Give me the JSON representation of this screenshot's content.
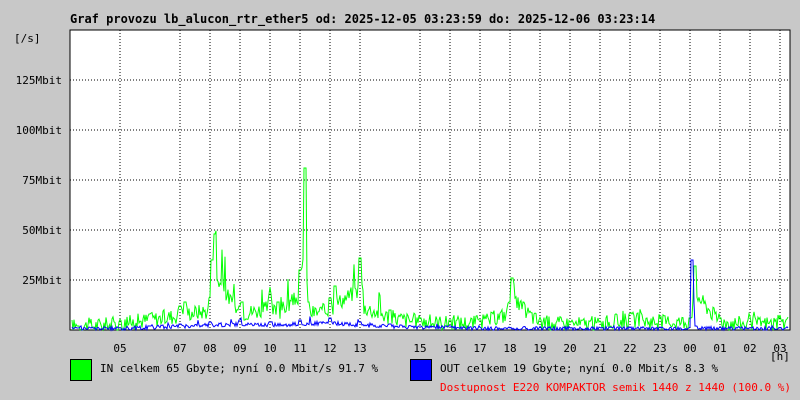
{
  "title": "Graf provozu lb_alucon_rtr_ether5 od: 2025-12-05 03:23:59 do: 2025-12-06 03:23:14",
  "chart_data": {
    "type": "area",
    "title": "Graf provozu lb_alucon_rtr_ether5 od: 2025-12-05 03:23:59 do: 2025-12-06 03:23:14",
    "ylabel": "[/s]",
    "xlabel": "[h]",
    "ylim": [
      0,
      150
    ],
    "y_unit": "Mbit",
    "y_ticks": [
      {
        "value": 25,
        "label": "25Mbit"
      },
      {
        "value": 50,
        "label": "50Mbit"
      },
      {
        "value": 75,
        "label": "75Mbit"
      },
      {
        "value": 100,
        "label": "100Mbit"
      },
      {
        "value": 125,
        "label": "125Mbit"
      }
    ],
    "x_ticks": [
      "05",
      "07",
      "08",
      "09",
      "10",
      "11",
      "12",
      "13",
      "15",
      "16",
      "17",
      "18",
      "19",
      "20",
      "21",
      "22",
      "23",
      "00",
      "01",
      "02",
      "03"
    ],
    "grid": true,
    "series": [
      {
        "name": "IN",
        "color": "#00ff00",
        "x": [
          "04",
          "05",
          "06",
          "07",
          "07",
          "08",
          "08",
          "08",
          "09",
          "09",
          "10",
          "10",
          "11",
          "11",
          "11",
          "12",
          "12",
          "13",
          "13",
          "14",
          "15",
          "16",
          "17",
          "18",
          "18",
          "19",
          "20",
          "21",
          "22",
          "23",
          "00",
          "00",
          "01",
          "02",
          "03"
        ],
        "values": [
          2,
          4,
          8,
          12,
          14,
          16,
          35,
          48,
          12,
          14,
          18,
          14,
          30,
          81,
          14,
          16,
          22,
          36,
          20,
          10,
          6,
          5,
          5,
          14,
          26,
          5,
          4,
          4,
          8,
          6,
          6,
          32,
          6,
          4,
          5
        ]
      },
      {
        "name": "OUT",
        "color": "#0000ff",
        "x": [
          "04",
          "05",
          "06",
          "07",
          "08",
          "09",
          "10",
          "11",
          "12",
          "13",
          "14",
          "15",
          "16",
          "17",
          "18",
          "19",
          "20",
          "21",
          "22",
          "23",
          "00",
          "00",
          "00",
          "01",
          "02",
          "03"
        ],
        "values": [
          1,
          1,
          2,
          3,
          4,
          5,
          4,
          5,
          6,
          4,
          3,
          2,
          2,
          1,
          1,
          1,
          1,
          1,
          1,
          1,
          1,
          35,
          2,
          1,
          1,
          1
        ]
      }
    ]
  },
  "legend": {
    "in": {
      "text": "IN celkem 65 Gbyte; nyní   0.0 Mbit/s 91.7 %",
      "color": "#00ff00"
    },
    "out": {
      "text": "OUT celkem 19 Gbyte; nyní   0.0 Mbit/s 8.3 %",
      "color": "#0000ff"
    }
  },
  "availability": "Dostupnost E220 KOMPAKTOR semik 1440 z 1440 (100.0 %)"
}
